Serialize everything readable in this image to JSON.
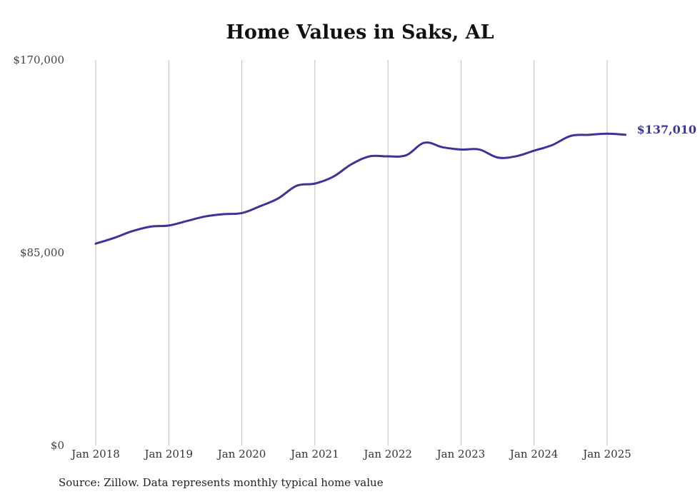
{
  "chart_data": {
    "type": "line",
    "title": "Home Values in Saks, AL",
    "source": "Source: Zillow. Data represents monthly typical home value",
    "ylim": [
      0,
      170000
    ],
    "y_ticks": [
      0,
      85000,
      170000
    ],
    "y_tick_labels": [
      "$0",
      "$85,000",
      "$170,000"
    ],
    "x_ticks": [
      "2018-01",
      "2019-01",
      "2020-01",
      "2021-01",
      "2022-01",
      "2023-01",
      "2024-01",
      "2025-01"
    ],
    "x_tick_labels": [
      "Jan 2018",
      "Jan 2019",
      "Jan 2020",
      "Jan 2021",
      "Jan 2022",
      "Jan 2023",
      "Jan 2024",
      "Jan 2025"
    ],
    "grid": "vertical",
    "line_color": "#3b3599",
    "end_label": "$137,010",
    "x": [
      "2018-01",
      "2018-04",
      "2018-07",
      "2018-10",
      "2019-01",
      "2019-04",
      "2019-07",
      "2019-10",
      "2020-01",
      "2020-04",
      "2020-07",
      "2020-10",
      "2021-01",
      "2021-04",
      "2021-07",
      "2021-10",
      "2022-01",
      "2022-04",
      "2022-07",
      "2022-10",
      "2023-01",
      "2023-04",
      "2023-07",
      "2023-10",
      "2024-01",
      "2024-04",
      "2024-07",
      "2024-10",
      "2025-01",
      "2025-04"
    ],
    "values": [
      89000,
      91500,
      94500,
      96500,
      97000,
      99000,
      101000,
      102000,
      102500,
      105500,
      109000,
      114500,
      115500,
      118500,
      124000,
      127500,
      127500,
      128000,
      133500,
      131500,
      130500,
      130500,
      127000,
      127500,
      130000,
      132500,
      136500,
      137000,
      137500,
      137010
    ]
  }
}
